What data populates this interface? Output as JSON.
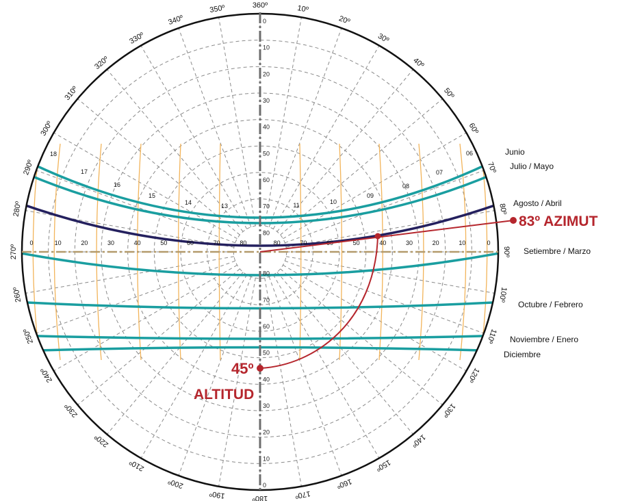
{
  "azimuth_labels": [
    "360º",
    "10º",
    "20º",
    "30º",
    "40º",
    "50º",
    "60º",
    "70º",
    "80º",
    "90º",
    "100º",
    "110º",
    "120º",
    "130º",
    "140º",
    "150º",
    "160º",
    "170º",
    "180º",
    "190º",
    "200º",
    "210º",
    "220º",
    "230º",
    "240º",
    "250º",
    "260º",
    "270º",
    "280º",
    "290º",
    "300º",
    "310º",
    "320º",
    "330º",
    "340º",
    "350º"
  ],
  "altitude_scale_labels": [
    "0",
    "10",
    "20",
    "30",
    "40",
    "50",
    "60",
    "70",
    "80"
  ],
  "horizontal_scale_labels": [
    "0",
    "10",
    "20",
    "30",
    "40",
    "50",
    "60",
    "70",
    "80"
  ],
  "hour_labels": [
    "18",
    "17",
    "16",
    "15",
    "14",
    "13",
    "11",
    "10",
    "09",
    "08",
    "07",
    "06"
  ],
  "month_labels": {
    "junio": "Junio",
    "julio_mayo": "Julio / Mayo",
    "agosto_abril": "Agosto / Abril",
    "setiembre_marzo": "Setiembre / Marzo",
    "octubre_febrero": "Octubre / Febrero",
    "noviembre_enero": "Noviembre / Enero",
    "diciembre": "Diciembre"
  },
  "annotations": {
    "azimut": "83º AZIMUT",
    "altitud_value": "45º",
    "altitud_word": "ALTITUD"
  },
  "colors": {
    "sun_path": "#1a9ea0",
    "highlight_path": "#24205e",
    "hour_lines": "#f2b45a",
    "annotation": "#b5262d",
    "grid": "#8a8a8a"
  },
  "example_reading": {
    "azimuth_deg": 83,
    "altitude_deg": 45
  }
}
